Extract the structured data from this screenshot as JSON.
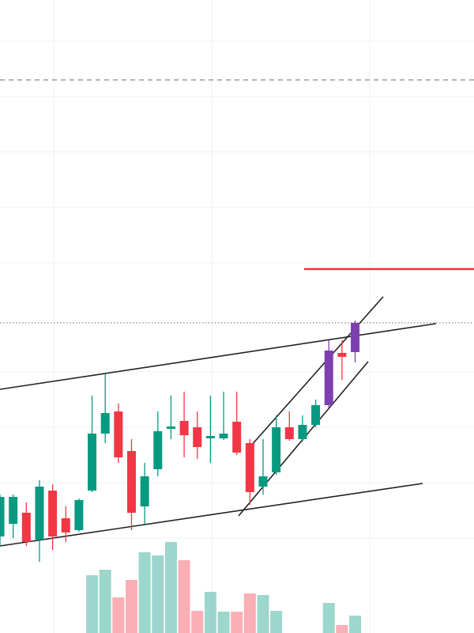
{
  "chart_data": {
    "type": "candlestick",
    "open": [
      122,
      138,
      152,
      118,
      180,
      145,
      130,
      180,
      252,
      280,
      230,
      160,
      207,
      258,
      268,
      260,
      246,
      246,
      267,
      240,
      185,
      203,
      260,
      245,
      263,
      288,
      354,
      355
    ],
    "high": [
      175,
      175,
      165,
      193,
      188,
      160,
      170,
      300,
      328,
      290,
      245,
      215,
      280,
      300,
      305,
      280,
      300,
      305,
      305,
      245,
      245,
      275,
      280,
      275,
      295,
      370,
      370,
      395
    ],
    "low": [
      110,
      120,
      110,
      90,
      105,
      115,
      128,
      178,
      240,
      215,
      130,
      138,
      198,
      245,
      222,
      220,
      215,
      244,
      225,
      162,
      175,
      200,
      243,
      242,
      260,
      285,
      320,
      342
    ],
    "close": [
      172,
      172,
      115,
      185,
      122,
      127,
      168,
      252,
      278,
      222,
      152,
      198,
      255,
      261,
      250,
      235,
      249,
      252,
      228,
      178,
      198,
      260,
      245,
      263,
      288,
      357,
      349,
      392
    ],
    "volume": [
      null,
      null,
      null,
      null,
      null,
      null,
      null,
      73,
      80,
      45,
      67,
      102,
      98,
      115,
      92,
      28,
      52,
      27,
      27,
      50,
      48,
      28,
      null,
      null,
      null,
      38,
      10,
      22
    ],
    "colors": [
      "#089981",
      "#089981",
      "#f23645",
      "#089981",
      "#f23645",
      "#f23645",
      "#089981",
      "#089981",
      "#089981",
      "#f23645",
      "#f23645",
      "#089981",
      "#089981",
      "#089981",
      "#f23645",
      "#f23645",
      "#089981",
      "#089981",
      "#f23645",
      "#f23645",
      "#089981",
      "#089981",
      "#f23645",
      "#089981",
      "#089981",
      "#7e3fb0",
      "#f23645",
      "#7e3fb0"
    ],
    "up_color": "#089981",
    "down_color": "#f23645",
    "ylim": [
      0,
      800
    ],
    "volume_lim": [
      0,
      800
    ]
  }
}
